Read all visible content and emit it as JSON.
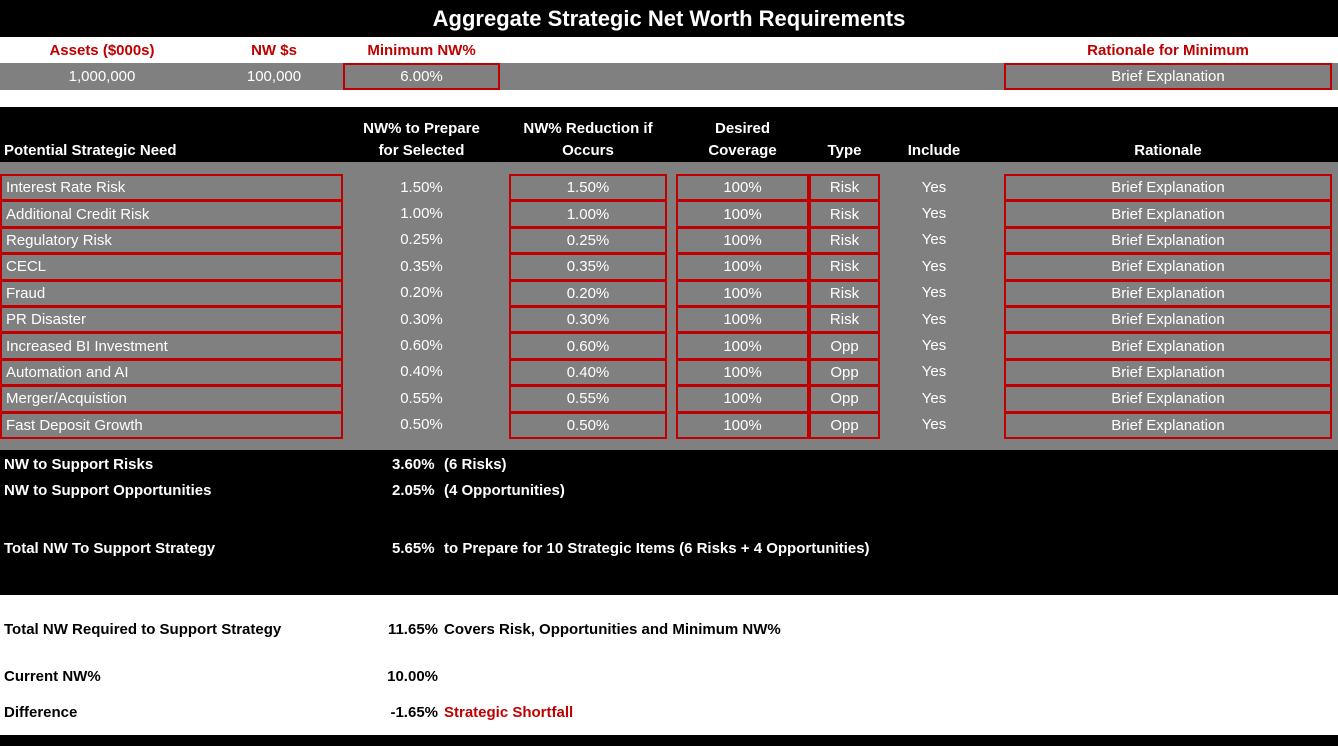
{
  "title": "Aggregate Strategic Net Worth Requirements",
  "minimum": {
    "headers": [
      "Assets ($000s)",
      "NW $s",
      "Minimum NW%",
      "Rationale for Minimum"
    ],
    "values": [
      "1,000,000",
      "100,000",
      "6.00%",
      "Brief Explanation"
    ]
  },
  "table": {
    "columns": [
      "Potential Strategic Need",
      "NW% to Prepare for Selected",
      "NW% Reduction if Occurs",
      "Desired Coverage",
      "Type",
      "Include",
      "Rationale"
    ],
    "rows": [
      [
        "Interest Rate Risk",
        "1.50%",
        "1.50%",
        "100%",
        "Risk",
        "Yes",
        "Brief Explanation"
      ],
      [
        "Additional Credit Risk",
        "1.00%",
        "1.00%",
        "100%",
        "Risk",
        "Yes",
        "Brief Explanation"
      ],
      [
        "Regulatory Risk",
        "0.25%",
        "0.25%",
        "100%",
        "Risk",
        "Yes",
        "Brief Explanation"
      ],
      [
        "CECL",
        "0.35%",
        "0.35%",
        "100%",
        "Risk",
        "Yes",
        "Brief Explanation"
      ],
      [
        "Fraud",
        "0.20%",
        "0.20%",
        "100%",
        "Risk",
        "Yes",
        "Brief Explanation"
      ],
      [
        "PR Disaster",
        "0.30%",
        "0.30%",
        "100%",
        "Risk",
        "Yes",
        "Brief Explanation"
      ],
      [
        "Increased BI Investment",
        "0.60%",
        "0.60%",
        "100%",
        "Opp",
        "Yes",
        "Brief Explanation"
      ],
      [
        "Automation and AI",
        "0.40%",
        "0.40%",
        "100%",
        "Opp",
        "Yes",
        "Brief Explanation"
      ],
      [
        "Merger/Acquistion",
        "0.55%",
        "0.55%",
        "100%",
        "Opp",
        "Yes",
        "Brief Explanation"
      ],
      [
        "Fast Deposit Growth",
        "0.50%",
        "0.50%",
        "100%",
        "Opp",
        "Yes",
        "Brief Explanation"
      ]
    ]
  },
  "summary": [
    {
      "label": "NW to Support Risks",
      "value": "3.60%",
      "note": "(6 Risks)"
    },
    {
      "label": "NW to Support Opportunities",
      "value": "2.05%",
      "note": "(4 Opportunities)"
    },
    {
      "label": "Total NW To Support Strategy",
      "value": "5.65%",
      "note": "to Prepare for 10 Strategic Items (6 Risks + 4 Opportunities)"
    }
  ],
  "requirement": [
    {
      "label": "Total NW Required to Support Strategy",
      "value": "11.65%",
      "note": "Covers Risk, Opportunities and Minimum NW%"
    },
    {
      "label": "Current NW%",
      "value": "10.00%"
    },
    {
      "label": "Difference",
      "value": "-1.65%",
      "note": "Strategic Shortfall"
    }
  ]
}
